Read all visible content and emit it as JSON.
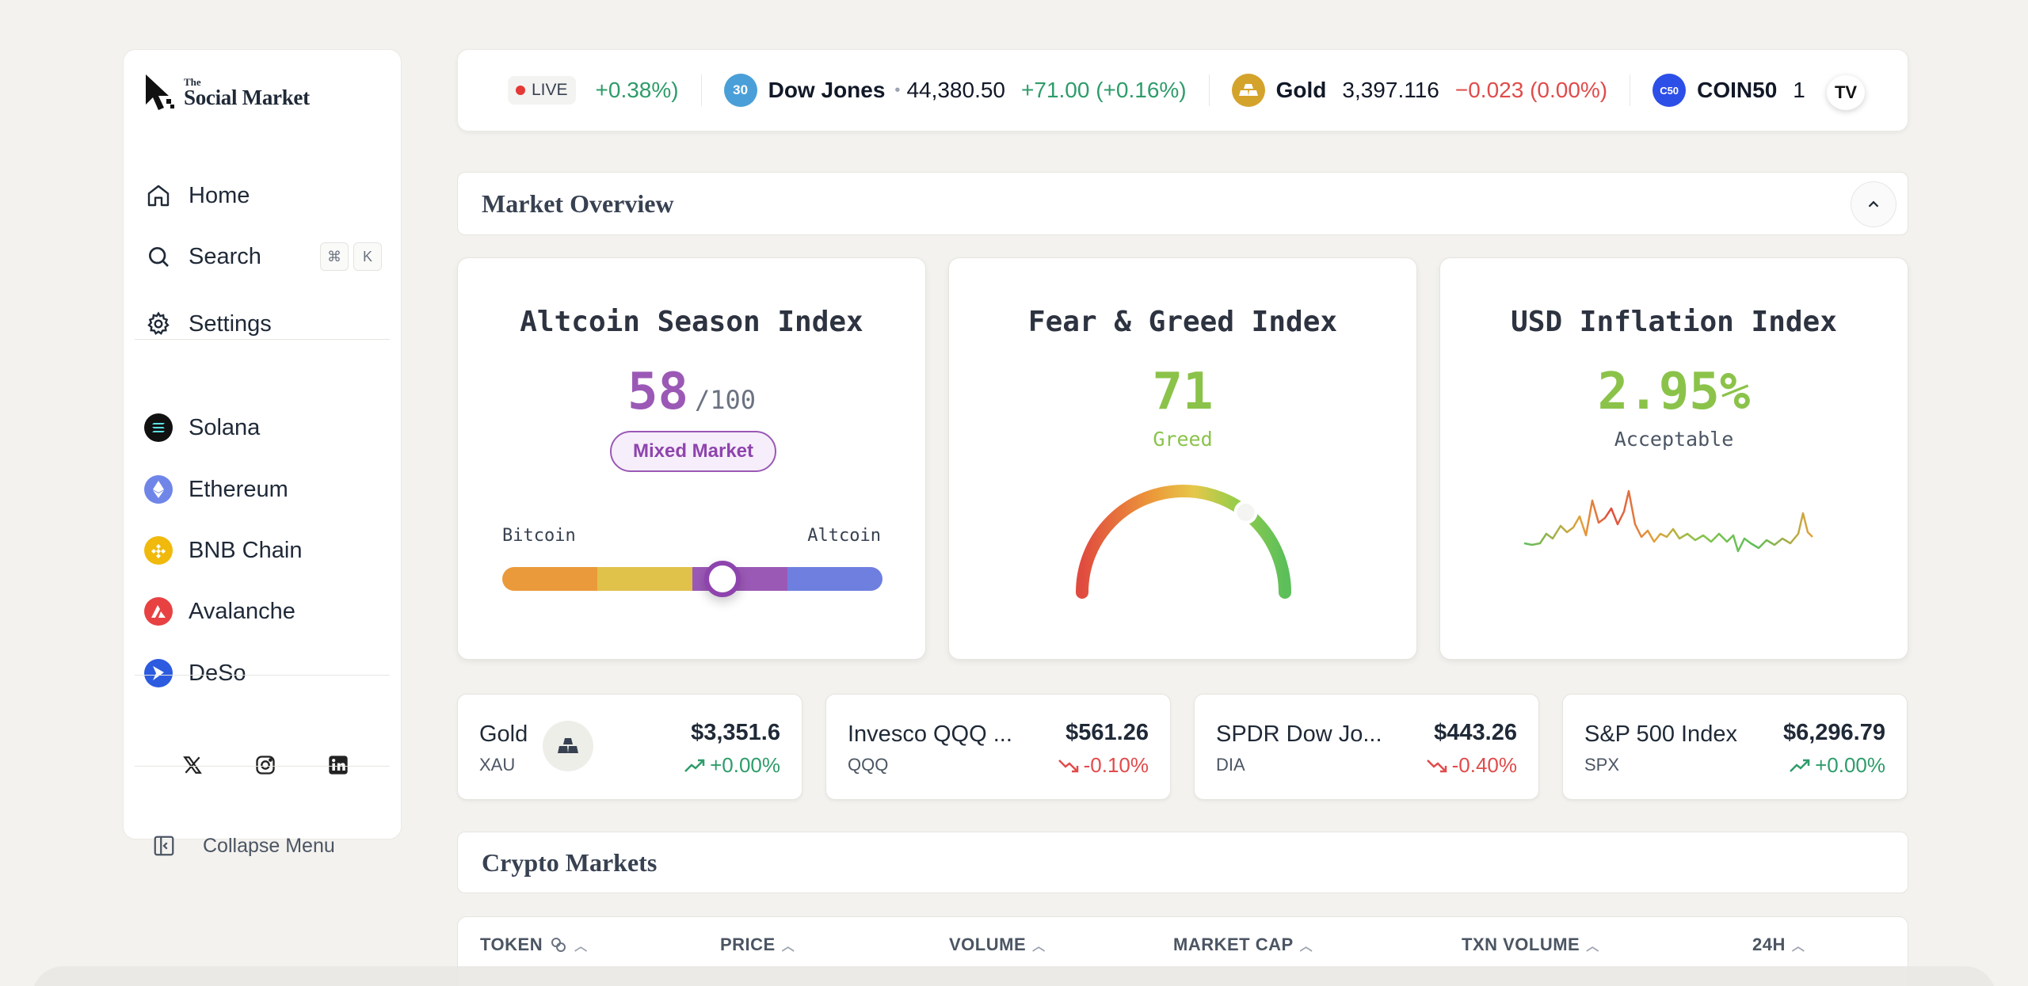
{
  "brand": {
    "the": "The",
    "name": "Social Market"
  },
  "nav": {
    "home": "Home",
    "search": "Search",
    "shortcut_mod": "⌘",
    "shortcut_key": "K",
    "settings": "Settings"
  },
  "chains": [
    {
      "label": "Solana",
      "color": "#111111"
    },
    {
      "label": "Ethereum",
      "color": "#6f86e8"
    },
    {
      "label": "BNB Chain",
      "color": "#f0b90b"
    },
    {
      "label": "Avalanche",
      "color": "#e84142"
    },
    {
      "label": "DeSo",
      "color": "#2c5be0"
    }
  ],
  "collapse_label": "Collapse Menu",
  "ticker": {
    "live": "LIVE",
    "prev_change": "+0.38%)",
    "items": [
      {
        "badge": "30",
        "name": "Dow Jones",
        "price": "44,380.50",
        "change": "+71.00 (+0.16%)",
        "dir": "up"
      },
      {
        "name": "Gold",
        "price": "3,397.116",
        "change": "−0.023 (0.00%)",
        "dir": "down"
      },
      {
        "badge": "C50",
        "name": "COIN50",
        "price": "1"
      }
    ],
    "tv_label": "TV"
  },
  "market_overview": {
    "title": "Market Overview"
  },
  "altcoin": {
    "title": "Altcoin Season Index",
    "value": "58",
    "max": "/100",
    "value_num": 58,
    "status": "Mixed Market",
    "left_label": "Bitcoin",
    "right_label": "Altcoin"
  },
  "fear_greed": {
    "title": "Fear & Greed Index",
    "value": "71",
    "value_num": 71,
    "status": "Greed"
  },
  "inflation": {
    "title": "USD Inflation Index",
    "value": "2.95%",
    "status": "Acceptable"
  },
  "assets": [
    {
      "name": "Gold",
      "ticker": "XAU",
      "price": "$3,351.6",
      "change": "+0.00%",
      "dir": "up"
    },
    {
      "name": "Invesco QQQ ...",
      "ticker": "QQQ",
      "price": "$561.26",
      "change": "-0.10%",
      "dir": "down"
    },
    {
      "name": "SPDR Dow Jo...",
      "ticker": "DIA",
      "price": "$443.26",
      "change": "-0.40%",
      "dir": "down"
    },
    {
      "name": "S&P 500 Index",
      "ticker": "SPX",
      "price": "$6,296.79",
      "change": "+0.00%",
      "dir": "up"
    }
  ],
  "crypto_markets": {
    "title": "Crypto Markets"
  },
  "table": {
    "columns": [
      "TOKEN",
      "PRICE",
      "VOLUME",
      "MARKET CAP",
      "TXN VOLUME",
      "24H"
    ]
  },
  "colors": {
    "purple": "#9b59b6",
    "green": "#8bc34a",
    "up": "#2e9c6a",
    "down": "#e14b4b"
  }
}
